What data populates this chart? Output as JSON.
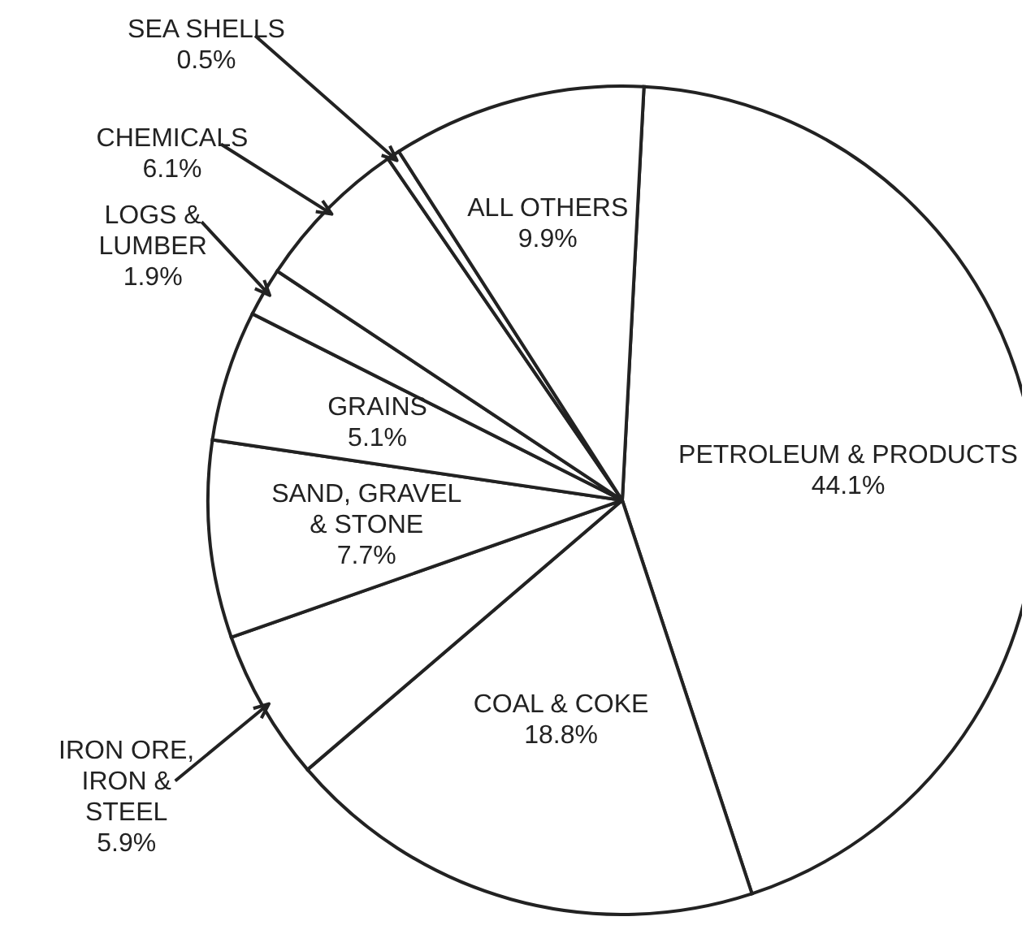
{
  "chart_data": {
    "type": "pie",
    "categories": [
      "PETROLEUM & PRODUCTS",
      "COAL & COKE",
      "IRON ORE, IRON & STEEL",
      "SAND, GRAVEL & STONE",
      "GRAINS",
      "LOGS & LUMBER",
      "CHEMICALS",
      "SEA SHELLS",
      "ALL OTHERS"
    ],
    "values": [
      44.1,
      18.8,
      5.9,
      7.7,
      5.1,
      1.9,
      6.1,
      0.5,
      9.9
    ],
    "value_labels": [
      "44.1%",
      "18.8%",
      "5.9%",
      "7.7%",
      "5.1%",
      "1.9%",
      "6.1%",
      "0.5%",
      "9.9%"
    ],
    "colors": [
      "#ffffff",
      "#ffffff",
      "#ffffff",
      "#ffffff",
      "#ffffff",
      "#ffffff",
      "#ffffff",
      "#ffffff",
      "#ffffff"
    ],
    "legend": false
  }
}
